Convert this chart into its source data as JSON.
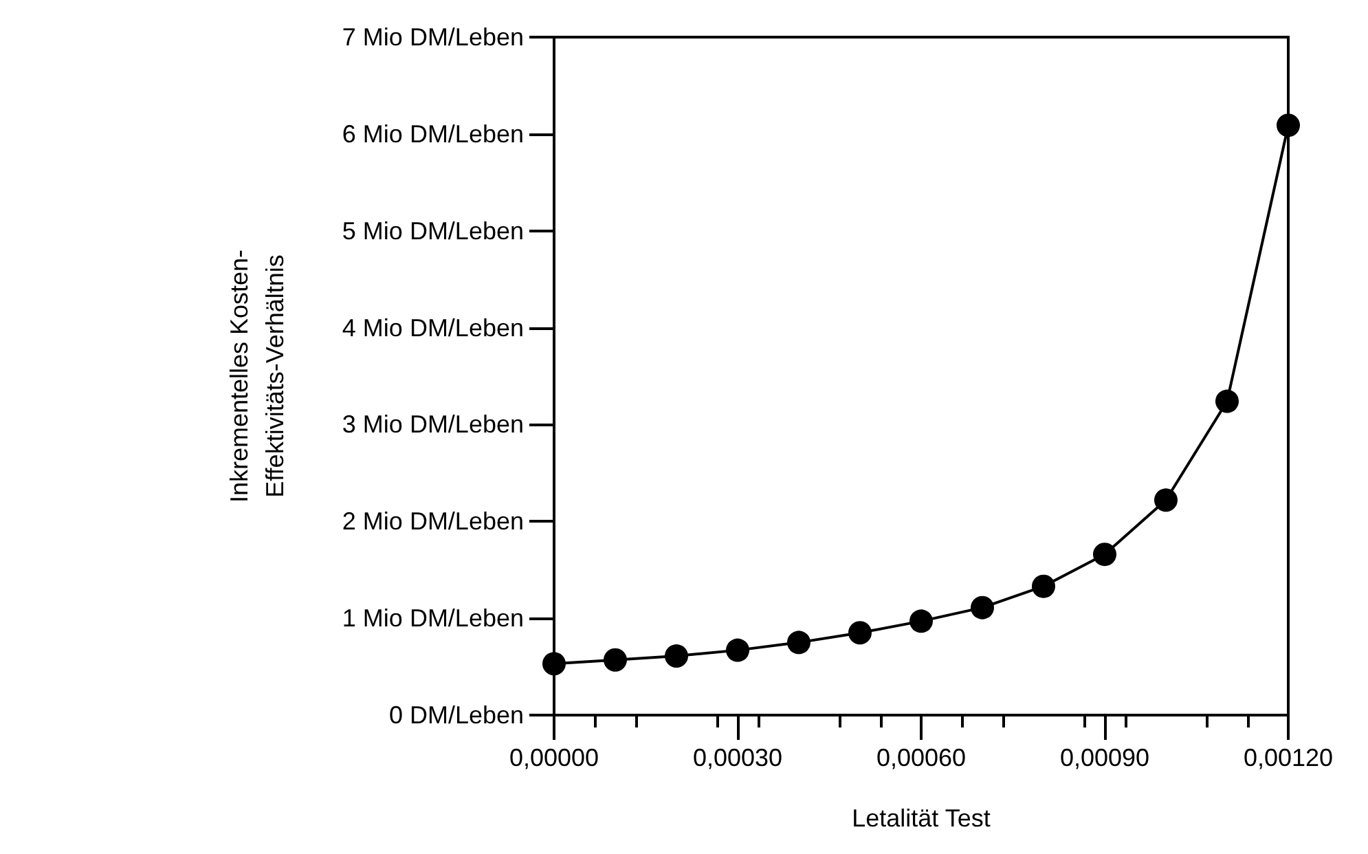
{
  "chart_data": {
    "type": "line",
    "xlabel": "Letalität Test",
    "ylabel": "Inkrementelles Kosten-\nEffektivitäts-Verhältnis",
    "x": [
      0,
      0.0001,
      0.0002,
      0.0003,
      0.0004,
      0.0005,
      0.0006,
      0.0007,
      0.0008,
      0.0009,
      0.001,
      0.0011,
      0.0012
    ],
    "series": [
      {
        "color": "#000000",
        "values": [
          0.53,
          0.57,
          0.61,
          0.67,
          0.75,
          0.85,
          0.97,
          1.11,
          1.33,
          1.66,
          2.22,
          3.24,
          6.09
        ]
      }
    ],
    "xlim": [
      0,
      0.0012
    ],
    "xticks": [
      {
        "value": 0,
        "label": "0,00000"
      },
      {
        "value": 0.0003,
        "label": "0,00030"
      },
      {
        "value": 0.0006,
        "label": "0,00060"
      },
      {
        "value": 0.0009,
        "label": "0,00090"
      },
      {
        "value": 0.0012,
        "label": "0,00120"
      }
    ],
    "ylim": [
      0,
      7
    ],
    "yticks": [
      {
        "value": 0,
        "label": "0 DM/Leben"
      },
      {
        "value": 1,
        "label": "1 Mio DM/Leben"
      },
      {
        "value": 2,
        "label": "2 Mio DM/Leben"
      },
      {
        "value": 3,
        "label": "3 Mio DM/Leben"
      },
      {
        "value": 4,
        "label": "4 Mio DM/Leben"
      },
      {
        "value": 5,
        "label": "5 Mio DM/Leben"
      },
      {
        "value": 6,
        "label": "6 Mio DM/Leben"
      },
      {
        "value": 7,
        "label": "7 Mio DM/Leben"
      }
    ],
    "marker": "circle",
    "line_style": "solid",
    "grid": false
  }
}
